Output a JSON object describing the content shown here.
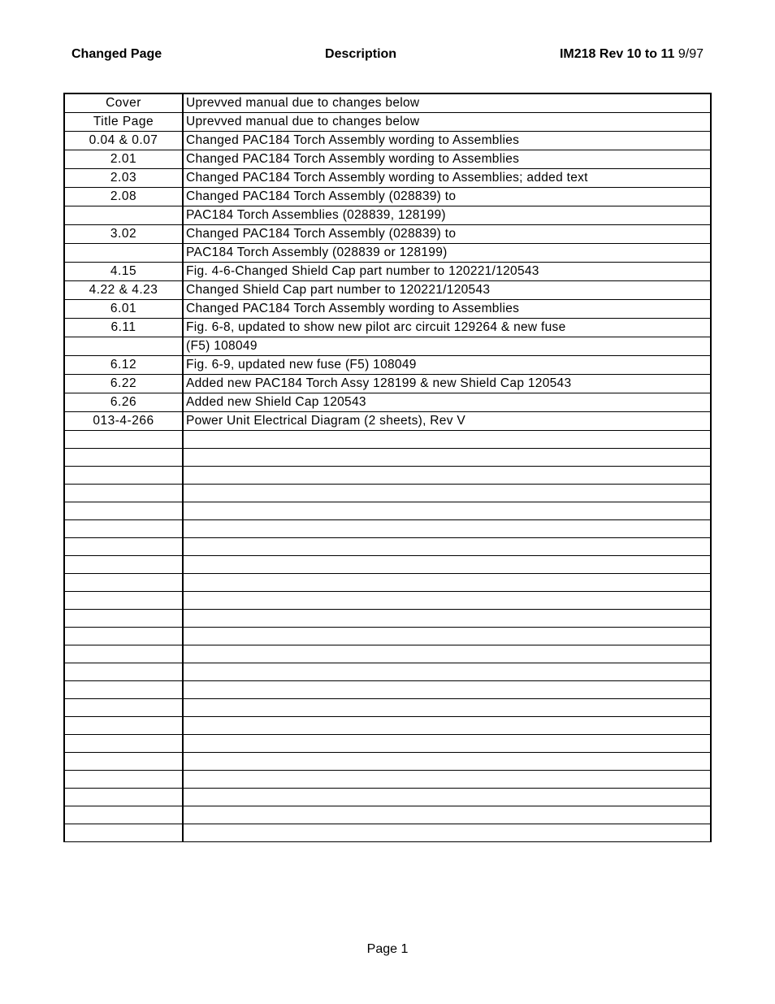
{
  "header": {
    "left": "Changed Page",
    "center": "Description",
    "right_bold": "IM218 Rev 10 to 11",
    "right_date": "9/97"
  },
  "table": {
    "col_widths": {
      "page": 146
    },
    "rows": [
      {
        "page": "Cover",
        "desc": "Uprevved manual due to changes below"
      },
      {
        "page": "Title Page",
        "desc": "Uprevved manual due to changes below"
      },
      {
        "page": "0.04  &  0.07",
        "desc": "Changed PAC184 Torch Assembly wording to Assemblies"
      },
      {
        "page": "2.01",
        "desc": "Changed PAC184 Torch Assembly wording to Assemblies"
      },
      {
        "page": "2.03",
        "desc": "Changed PAC184 Torch Assembly wording to Assemblies; added text"
      },
      {
        "page": "2.08",
        "desc": "Changed PAC184 Torch Assembly (028839) to"
      },
      {
        "page": "",
        "desc": "PAC184 Torch Assemblies (028839, 128199)"
      },
      {
        "page": "3.02",
        "desc": "Changed PAC184 Torch Assembly (028839) to"
      },
      {
        "page": "",
        "desc": "PAC184 Torch Assembly (028839 or 128199)"
      },
      {
        "page": "4.15",
        "desc": "Fig. 4-6-Changed Shield Cap part number to 120221/120543"
      },
      {
        "page": "4.22  &  4.23",
        "desc": "Changed Shield Cap part number to 120221/120543"
      },
      {
        "page": "6.01",
        "desc": "Changed PAC184 Torch Assembly wording to Assemblies"
      },
      {
        "page": "6.11",
        "desc": "Fig. 6-8, updated to show new pilot arc circuit 129264 & new fuse"
      },
      {
        "page": "",
        "desc": "(F5)  108049"
      },
      {
        "page": "6.12",
        "desc": "Fig. 6-9, updated new fuse (F5) 108049"
      },
      {
        "page": "6.22",
        "desc": "Added new PAC184 Torch Assy 128199 & new Shield Cap 120543"
      },
      {
        "page": "6.26",
        "desc": "Added new Shield Cap 120543"
      },
      {
        "page": "013-4-266",
        "desc": "Power Unit Electrical Diagram (2 sheets), Rev V"
      },
      {
        "page": "",
        "desc": ""
      },
      {
        "page": "",
        "desc": ""
      },
      {
        "page": "",
        "desc": ""
      },
      {
        "page": "",
        "desc": ""
      },
      {
        "page": "",
        "desc": ""
      },
      {
        "page": "",
        "desc": ""
      },
      {
        "page": "",
        "desc": ""
      },
      {
        "page": "",
        "desc": ""
      },
      {
        "page": "",
        "desc": ""
      },
      {
        "page": "",
        "desc": ""
      },
      {
        "page": "",
        "desc": ""
      },
      {
        "page": "",
        "desc": ""
      },
      {
        "page": "",
        "desc": ""
      },
      {
        "page": "",
        "desc": ""
      },
      {
        "page": "",
        "desc": ""
      },
      {
        "page": "",
        "desc": ""
      },
      {
        "page": "",
        "desc": ""
      },
      {
        "page": "",
        "desc": ""
      },
      {
        "page": "",
        "desc": ""
      },
      {
        "page": "",
        "desc": ""
      },
      {
        "page": "",
        "desc": ""
      },
      {
        "page": "",
        "desc": ""
      },
      {
        "page": "",
        "desc": ""
      }
    ]
  },
  "footer": {
    "page_label": "Page 1"
  }
}
